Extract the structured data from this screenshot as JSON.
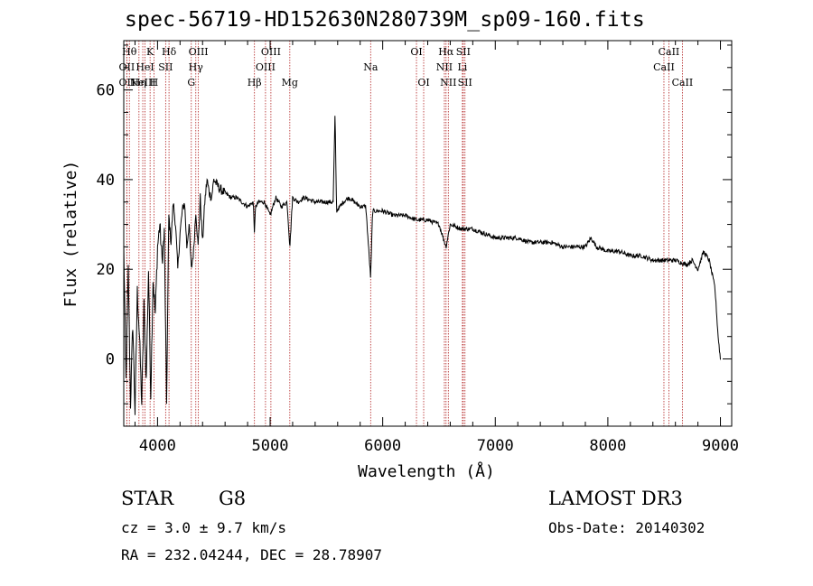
{
  "header": {
    "title": "spec-56719-HD152630N280739M_sp09-160.fits"
  },
  "info": {
    "class_label": "STAR",
    "subclass": "G8",
    "survey": "LAMOST DR3",
    "cz": "cz = 3.0 ± 9.7 km/s",
    "obs_date": "Obs-Date: 20140302",
    "coords": "RA = 232.04244, DEC =  28.78907"
  },
  "colors": {
    "line_marker": "#b22222",
    "spectrum": "#000000",
    "axes": "#000000"
  },
  "chart_data": {
    "type": "line",
    "title": "spec-56719-HD152630N280739M_sp09-160.fits",
    "xlabel": "Wavelength (Å)",
    "ylabel": "Flux (relative)",
    "xlim": [
      3700,
      9100
    ],
    "ylim": [
      -15,
      71
    ],
    "x_ticks": [
      4000,
      5000,
      6000,
      7000,
      8000,
      9000
    ],
    "y_ticks": [
      0,
      20,
      40,
      60
    ],
    "grid": false,
    "series": [
      {
        "name": "spectrum",
        "x": [
          3700,
          3720,
          3740,
          3760,
          3780,
          3800,
          3820,
          3840,
          3860,
          3880,
          3900,
          3920,
          3940,
          3960,
          3980,
          4000,
          4020,
          4040,
          4060,
          4080,
          4100,
          4120,
          4140,
          4160,
          4180,
          4200,
          4220,
          4240,
          4260,
          4280,
          4300,
          4320,
          4340,
          4360,
          4380,
          4400,
          4420,
          4440,
          4460,
          4480,
          4500,
          4550,
          4600,
          4650,
          4700,
          4750,
          4800,
          4850,
          4861,
          4870,
          4900,
          4950,
          5000,
          5050,
          5100,
          5150,
          5175,
          5200,
          5250,
          5300,
          5400,
          5500,
          5560,
          5577,
          5590,
          5650,
          5700,
          5800,
          5850,
          5893,
          5910,
          5950,
          6000,
          6100,
          6200,
          6300,
          6400,
          6500,
          6563,
          6600,
          6700,
          6800,
          6900,
          7000,
          7100,
          7200,
          7300,
          7400,
          7500,
          7600,
          7700,
          7800,
          7850,
          7900,
          8000,
          8100,
          8200,
          8300,
          8400,
          8500,
          8600,
          8700,
          8750,
          8800,
          8850,
          8900,
          8950,
          8980,
          9000
        ],
        "y": [
          25,
          -5,
          20,
          -10,
          8,
          -12,
          15,
          5,
          -10,
          12,
          -5,
          20,
          -8,
          18,
          10,
          25,
          30,
          22,
          28,
          -10,
          32,
          26,
          35,
          30,
          20,
          28,
          33,
          35,
          25,
          30,
          20,
          24,
          33,
          25,
          36,
          26,
          35,
          40,
          37,
          36,
          40,
          38,
          37,
          36,
          36,
          35,
          34,
          35,
          28,
          34,
          35,
          35,
          32,
          36,
          34,
          35,
          25,
          36,
          35,
          36,
          35,
          35,
          35,
          55,
          33,
          35,
          36,
          34,
          34,
          18,
          33,
          33,
          33,
          32,
          32,
          31,
          31,
          30,
          25,
          30,
          29,
          29,
          28,
          27,
          27,
          27,
          26,
          26,
          26,
          25,
          25,
          25,
          27,
          25,
          24,
          24,
          23,
          23,
          22,
          22,
          22,
          21,
          22,
          20,
          24,
          22,
          16,
          5,
          0
        ]
      }
    ],
    "spectral_lines": [
      {
        "wavelength": 3750,
        "label": "Hθ",
        "row": 0
      },
      {
        "wavelength": 3727,
        "label": "OII",
        "row": 1
      },
      {
        "wavelength": 3727,
        "label": "OII",
        "row": 2
      },
      {
        "wavelength": 3835,
        "label": "Hη",
        "row": 2
      },
      {
        "wavelength": 3869,
        "label": "NeIII",
        "row": 2
      },
      {
        "wavelength": 3889,
        "label": "HeI",
        "row": 1
      },
      {
        "wavelength": 3934,
        "label": "K",
        "row": 0
      },
      {
        "wavelength": 3968,
        "label": "H",
        "row": 2
      },
      {
        "wavelength": 4072,
        "label": "SII",
        "row": 1
      },
      {
        "wavelength": 4102,
        "label": "Hδ",
        "row": 0
      },
      {
        "wavelength": 4300,
        "label": "G",
        "row": 2
      },
      {
        "wavelength": 4340,
        "label": "Hγ",
        "row": 1
      },
      {
        "wavelength": 4363,
        "label": "OIII",
        "row": 0
      },
      {
        "wavelength": 4861,
        "label": "Hβ",
        "row": 2
      },
      {
        "wavelength": 4959,
        "label": "OIII",
        "row": 1
      },
      {
        "wavelength": 5007,
        "label": "OIII",
        "row": 0
      },
      {
        "wavelength": 5175,
        "label": "Mg",
        "row": 2
      },
      {
        "wavelength": 5893,
        "label": "Na",
        "row": 1
      },
      {
        "wavelength": 6300,
        "label": "OI",
        "row": 0
      },
      {
        "wavelength": 6364,
        "label": "OI",
        "row": 2
      },
      {
        "wavelength": 6548,
        "label": "NII",
        "row": 1
      },
      {
        "wavelength": 6563,
        "label": "Hα",
        "row": 0
      },
      {
        "wavelength": 6583,
        "label": "NII",
        "row": 2
      },
      {
        "wavelength": 6708,
        "label": "Li",
        "row": 1
      },
      {
        "wavelength": 6716,
        "label": "SII",
        "row": 0
      },
      {
        "wavelength": 6731,
        "label": "SII",
        "row": 2
      },
      {
        "wavelength": 8498,
        "label": "CaII",
        "row": 1
      },
      {
        "wavelength": 8542,
        "label": "CaII",
        "row": 0
      },
      {
        "wavelength": 8662,
        "label": "CaII",
        "row": 2
      }
    ]
  }
}
